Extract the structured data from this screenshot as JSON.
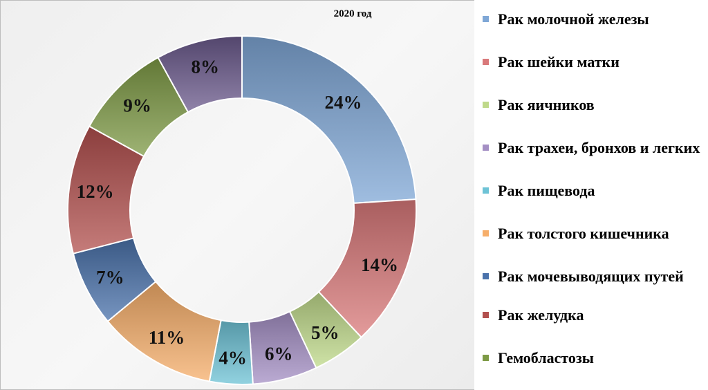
{
  "chart_data": {
    "type": "pie",
    "variant": "donut",
    "title": "2020 год",
    "legend_position": "right",
    "slices": [
      {
        "label": "Рак молочной железы",
        "value": 24,
        "value_label": "24%",
        "color": "#7fa7d6"
      },
      {
        "label": "Рак шейки матки",
        "value": 14,
        "value_label": "14%",
        "color": "#d9797a"
      },
      {
        "label": "Рак яичников",
        "value": 5,
        "value_label": "5%",
        "color": "#bfd98a"
      },
      {
        "label": "Рак трахеи, бронхов и легких",
        "value": 6,
        "value_label": "6%",
        "color": "#a48fc4"
      },
      {
        "label": "Рак пищевода",
        "value": 4,
        "value_label": "4%",
        "color": "#6ec3d6"
      },
      {
        "label": "Рак толстого кишечника",
        "value": 11,
        "value_label": "11%",
        "color": "#f6ae6a"
      },
      {
        "label": "Рак мочевыводящих путей",
        "value": 7,
        "value_label": "7%",
        "color": "#4a72ab"
      },
      {
        "label": "Рак желудка",
        "value": 12,
        "value_label": "12%",
        "color": "#b2504e"
      },
      {
        "label": "Гемобластозы",
        "value": 9,
        "value_label": "9%",
        "color": "#7d9a45"
      },
      {
        "label": "",
        "value": 8,
        "value_label": "8%",
        "color": "#6b5a8c"
      }
    ]
  }
}
